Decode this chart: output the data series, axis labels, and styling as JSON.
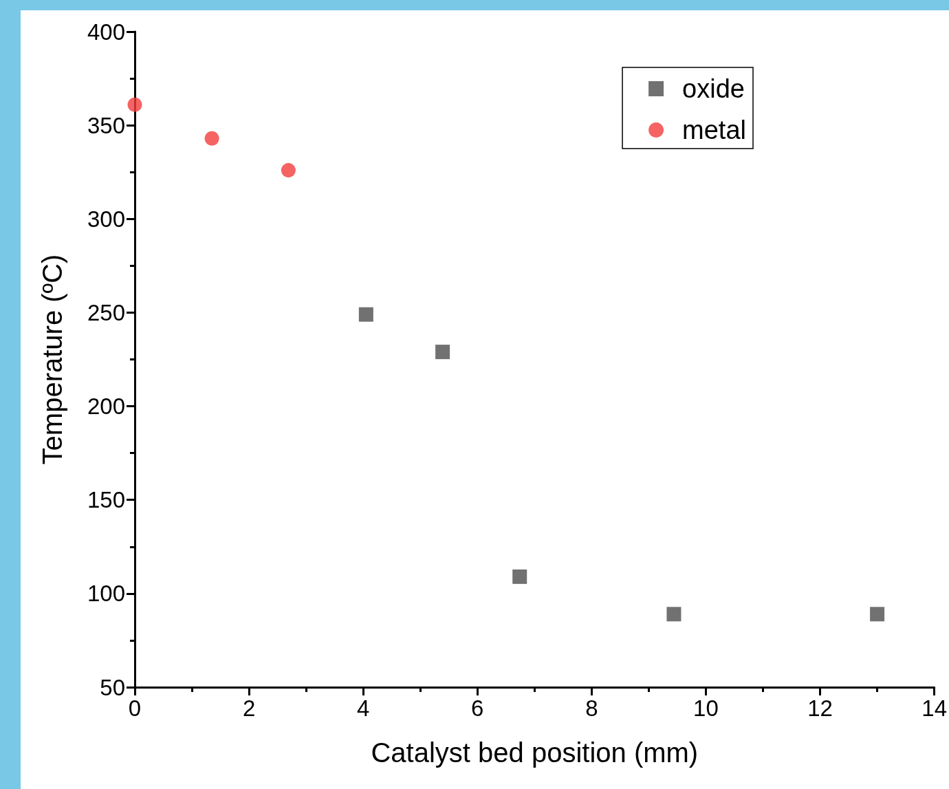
{
  "chart_data": {
    "type": "scatter",
    "xlabel": "Catalyst bed position (mm)",
    "ylabel": "Temperature (ºC)",
    "series": [
      {
        "name": "oxide",
        "color": "#4d4d4d",
        "marker": "square",
        "x": [
          4.05,
          5.39,
          6.74,
          9.44,
          13.0
        ],
        "values": [
          249,
          229,
          109,
          89,
          89
        ]
      },
      {
        "name": "metal",
        "color": "#f23c3c",
        "marker": "circle",
        "x": [
          0,
          1.35,
          2.69
        ],
        "values": [
          361,
          343,
          326
        ]
      }
    ],
    "xlim": [
      0,
      14
    ],
    "xticks": [
      0,
      2,
      4,
      6,
      8,
      10,
      12,
      14
    ],
    "ylim": [
      50,
      400
    ],
    "yticks": [
      50,
      100,
      150,
      200,
      250,
      300,
      350,
      400
    ],
    "grid": false,
    "legend": "top right"
  }
}
